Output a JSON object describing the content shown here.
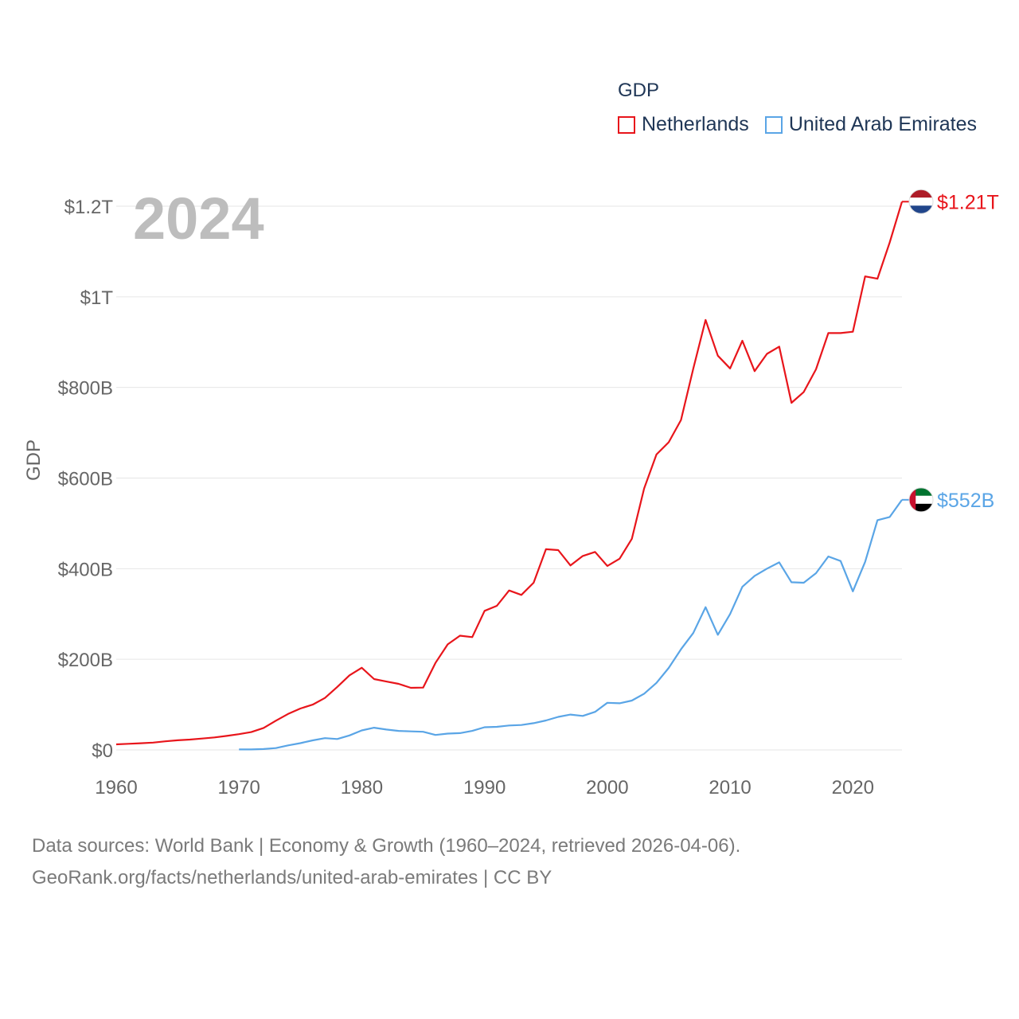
{
  "chart_data": {
    "type": "line",
    "year_label": "2024",
    "ylabel": "GDP",
    "xlim": [
      1960,
      2024
    ],
    "ylim": [
      0,
      1200
    ],
    "x_ticks": [
      1960,
      1970,
      1980,
      1990,
      2000,
      2010,
      2020
    ],
    "x_tick_labels": [
      "1960",
      "1970",
      "1980",
      "1990",
      "2000",
      "2010",
      "2020"
    ],
    "y_ticks": [
      0,
      200,
      400,
      600,
      800,
      1000,
      1200
    ],
    "y_tick_labels": [
      "$0",
      "$200B",
      "$400B",
      "$600B",
      "$800B",
      "$1T",
      "$1.2T"
    ],
    "legend_title": "GDP",
    "series": [
      {
        "name": "Netherlands",
        "color": "#e8151b",
        "end_label": "$1.21T",
        "flag_icon": "netherlands-flag-icon",
        "x": [
          1960,
          1961,
          1962,
          1963,
          1964,
          1965,
          1966,
          1967,
          1968,
          1969,
          1970,
          1971,
          1972,
          1973,
          1974,
          1975,
          1976,
          1977,
          1978,
          1979,
          1980,
          1981,
          1982,
          1983,
          1984,
          1985,
          1986,
          1987,
          1988,
          1989,
          1990,
          1991,
          1992,
          1993,
          1994,
          1995,
          1996,
          1997,
          1998,
          1999,
          2000,
          2001,
          2002,
          2003,
          2004,
          2005,
          2006,
          2007,
          2008,
          2009,
          2010,
          2011,
          2012,
          2013,
          2014,
          2015,
          2016,
          2017,
          2018,
          2019,
          2020,
          2021,
          2022,
          2023,
          2024
        ],
        "values": [
          12.3,
          13.6,
          14.8,
          16.1,
          19,
          21.2,
          22.9,
          25.1,
          27.6,
          30.9,
          34.7,
          39.3,
          48.5,
          64.5,
          79.4,
          91.4,
          100,
          114.8,
          139,
          164.6,
          181.4,
          156.4,
          151,
          145.9,
          137,
          137.5,
          192,
          233,
          252.1,
          249,
          307,
          318,
          352,
          342,
          369,
          443,
          441,
          407,
          428,
          437,
          406,
          422,
          466,
          577,
          652,
          679,
          728,
          841,
          949,
          870,
          842,
          903,
          836,
          874,
          890,
          766,
          790,
          840,
          920,
          920,
          923,
          1045,
          1040,
          1120,
          1210
        ]
      },
      {
        "name": "United Arab Emirates",
        "color": "#5aa5e6",
        "end_label": "$552B",
        "flag_icon": "uae-flag-icon",
        "x": [
          1970,
          1971,
          1972,
          1973,
          1974,
          1975,
          1976,
          1977,
          1978,
          1979,
          1980,
          1981,
          1982,
          1983,
          1984,
          1985,
          1986,
          1987,
          1988,
          1989,
          1990,
          1991,
          1992,
          1993,
          1994,
          1995,
          1996,
          1997,
          1998,
          1999,
          2000,
          2001,
          2002,
          2003,
          2004,
          2005,
          2006,
          2007,
          2008,
          2009,
          2010,
          2011,
          2012,
          2013,
          2014,
          2015,
          2016,
          2017,
          2018,
          2019,
          2020,
          2021,
          2022,
          2023,
          2024
        ],
        "values": [
          1,
          1,
          2,
          4,
          10,
          15,
          21,
          26,
          24,
          32,
          43,
          49,
          45,
          42,
          41,
          40,
          33,
          36,
          37,
          42,
          50,
          51,
          54,
          55,
          59,
          65,
          73,
          78,
          75,
          84,
          104,
          103,
          109,
          124,
          148,
          181,
          222,
          258,
          315,
          254,
          300,
          360,
          384,
          400,
          414,
          370,
          369,
          390,
          427,
          417,
          350,
          415,
          507,
          514,
          552
        ]
      }
    ]
  },
  "source": {
    "line1": "Data sources: World Bank | Economy & Growth (1960–2024, retrieved 2026-04-06).",
    "line2": "GeoRank.org/facts/netherlands/united-arab-emirates | CC BY"
  }
}
